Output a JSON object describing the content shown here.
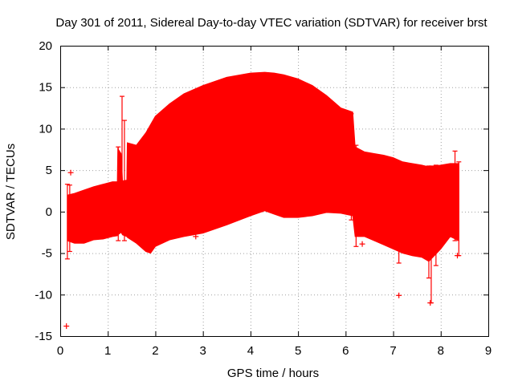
{
  "chart_data": {
    "type": "scatter",
    "title": "Day 301 of 2011, Sidereal Day-to-day VTEC variation (SDTVAR) for receiver brst",
    "xlabel": "GPS time / hours",
    "ylabel": "SDTVAR / TECUs",
    "xlim": [
      0,
      9
    ],
    "ylim": [
      -15,
      20
    ],
    "xticks": [
      0,
      1,
      2,
      3,
      4,
      5,
      6,
      7,
      8,
      9
    ],
    "yticks": [
      -15,
      -10,
      -5,
      0,
      5,
      10,
      15,
      20
    ],
    "xtick_labels": [
      "0",
      "1",
      "2",
      "3",
      "4",
      "5",
      "6",
      "7",
      "8",
      "9"
    ],
    "ytick_labels": [
      "-15",
      "-10",
      "-5",
      "0",
      "5",
      "10",
      "15",
      "20"
    ],
    "grid": true,
    "series_color": "#ff0000",
    "series": [
      {
        "name": "SDTVAR",
        "marker": "plus",
        "envelope": [
          {
            "x": 0.15,
            "upper": 2.0,
            "lower": -3.5
          },
          {
            "x": 0.3,
            "upper": 2.2,
            "lower": -3.8
          },
          {
            "x": 0.5,
            "upper": 2.6,
            "lower": -3.8
          },
          {
            "x": 0.7,
            "upper": 3.0,
            "lower": -3.4
          },
          {
            "x": 0.9,
            "upper": 3.3,
            "lower": -3.3
          },
          {
            "x": 1.1,
            "upper": 3.6,
            "lower": -3.0
          },
          {
            "x": 1.2,
            "upper": 3.6,
            "lower": -2.9
          },
          {
            "x": 1.21,
            "upper": 7.6,
            "lower": -2.8
          },
          {
            "x": 1.28,
            "upper": 7.0,
            "lower": -2.5
          },
          {
            "x": 1.31,
            "upper": 3.7,
            "lower": -2.8
          },
          {
            "x": 1.4,
            "upper": 3.8,
            "lower": -3.0
          },
          {
            "x": 1.41,
            "upper": 8.3,
            "lower": -3.1
          },
          {
            "x": 1.6,
            "upper": 8.0,
            "lower": -3.8
          },
          {
            "x": 1.8,
            "upper": 9.5,
            "lower": -4.8
          },
          {
            "x": 1.9,
            "upper": 10.5,
            "lower": -5.0
          },
          {
            "x": 2.0,
            "upper": 11.5,
            "lower": -4.2
          },
          {
            "x": 2.3,
            "upper": 13.0,
            "lower": -3.4
          },
          {
            "x": 2.6,
            "upper": 14.2,
            "lower": -3.0
          },
          {
            "x": 3.0,
            "upper": 15.2,
            "lower": -2.6
          },
          {
            "x": 3.5,
            "upper": 16.2,
            "lower": -1.6
          },
          {
            "x": 4.0,
            "upper": 16.7,
            "lower": -0.5
          },
          {
            "x": 4.3,
            "upper": 16.8,
            "lower": 0.1
          },
          {
            "x": 4.5,
            "upper": 16.7,
            "lower": -0.3
          },
          {
            "x": 4.7,
            "upper": 16.5,
            "lower": -0.7
          },
          {
            "x": 5.0,
            "upper": 16.0,
            "lower": -0.7
          },
          {
            "x": 5.3,
            "upper": 15.2,
            "lower": -0.5
          },
          {
            "x": 5.6,
            "upper": 14.0,
            "lower": -0.1
          },
          {
            "x": 5.9,
            "upper": 12.5,
            "lower": -0.2
          },
          {
            "x": 6.15,
            "upper": 12.0,
            "lower": -0.5
          },
          {
            "x": 6.2,
            "upper": 7.8,
            "lower": -3.0
          },
          {
            "x": 6.4,
            "upper": 7.2,
            "lower": -3.0
          },
          {
            "x": 6.6,
            "upper": 7.0,
            "lower": -3.5
          },
          {
            "x": 6.8,
            "upper": 6.8,
            "lower": -4.0
          },
          {
            "x": 7.0,
            "upper": 6.5,
            "lower": -4.5
          },
          {
            "x": 7.2,
            "upper": 6.0,
            "lower": -5.0
          },
          {
            "x": 7.4,
            "upper": 5.8,
            "lower": -5.3
          },
          {
            "x": 7.6,
            "upper": 5.6,
            "lower": -5.5
          },
          {
            "x": 7.75,
            "upper": 5.4,
            "lower": -6.0
          },
          {
            "x": 8.0,
            "upper": 5.6,
            "lower": -4.5
          },
          {
            "x": 8.2,
            "upper": 5.8,
            "lower": -3.0
          },
          {
            "x": 8.38,
            "upper": 5.8,
            "lower": -3.5
          }
        ],
        "spikes": [
          {
            "x": 0.15,
            "upper": 3.3,
            "lower": -5.7
          },
          {
            "x": 0.2,
            "upper": 3.2,
            "lower": -4.8
          },
          {
            "x": 1.22,
            "upper": 7.8,
            "lower": -3.5
          },
          {
            "x": 1.3,
            "upper": 13.9,
            "lower": -2.0
          },
          {
            "x": 1.35,
            "upper": 11.0,
            "lower": -3.5
          },
          {
            "x": 6.12,
            "upper": 11.8,
            "lower": -1.0
          },
          {
            "x": 6.22,
            "upper": 8.0,
            "lower": -4.2
          },
          {
            "x": 7.12,
            "upper": 5.5,
            "lower": -6.2
          },
          {
            "x": 7.75,
            "upper": 5.5,
            "lower": -8.0
          },
          {
            "x": 7.8,
            "upper": 5.5,
            "lower": -11.0
          },
          {
            "x": 7.9,
            "upper": 5.6,
            "lower": -6.5
          },
          {
            "x": 8.3,
            "upper": 7.3,
            "lower": -3.5
          },
          {
            "x": 8.38,
            "upper": 6.0,
            "lower": -5.3
          }
        ],
        "outliers": [
          {
            "x": 0.13,
            "y": -13.8
          },
          {
            "x": 0.22,
            "y": 4.7
          },
          {
            "x": 2.85,
            "y": -3.0
          },
          {
            "x": 6.35,
            "y": -3.9
          },
          {
            "x": 7.12,
            "y": -10.1
          },
          {
            "x": 7.78,
            "y": -11.0
          },
          {
            "x": 8.35,
            "y": -5.3
          }
        ]
      }
    ]
  }
}
